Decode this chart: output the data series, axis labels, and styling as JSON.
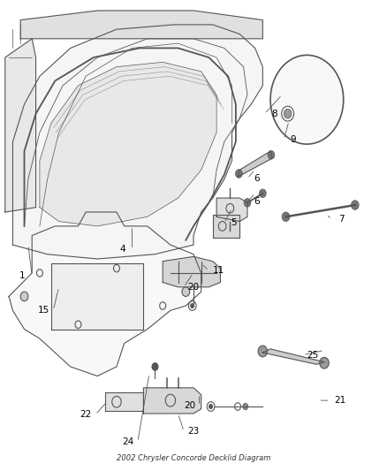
{
  "title": "2002 Chrysler Concorde Decklid Diagram",
  "bg_color": "#ffffff",
  "line_color": "#555555",
  "label_color": "#000000",
  "figsize": [
    4.38,
    5.33
  ],
  "dpi": 100
}
